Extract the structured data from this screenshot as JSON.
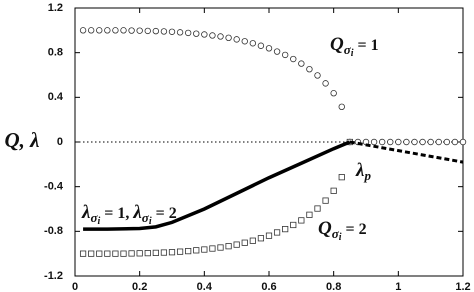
{
  "chart_data": {
    "type": "scatter",
    "y_label": "Q, λ",
    "xlim": [
      0,
      1.2
    ],
    "ylim": [
      -1.2,
      1.2
    ],
    "xticks": [
      0,
      0.2,
      0.4,
      0.6,
      0.8,
      1,
      1.2
    ],
    "yticks": [
      -1.2,
      -0.8,
      -0.4,
      0,
      0.4,
      0.8,
      1.2
    ],
    "reference_y": 0,
    "series": [
      {
        "marker": "circle",
        "color": "#333333",
        "x": [
          0.025,
          0.05,
          0.075,
          0.1,
          0.125,
          0.15,
          0.175,
          0.2,
          0.225,
          0.25,
          0.275,
          0.3,
          0.325,
          0.35,
          0.375,
          0.4,
          0.425,
          0.45,
          0.475,
          0.5,
          0.525,
          0.55,
          0.575,
          0.6,
          0.625,
          0.65,
          0.675,
          0.7,
          0.725,
          0.75,
          0.775,
          0.8,
          0.825,
          0.85,
          0.875,
          0.9,
          0.925,
          0.95,
          0.975,
          1,
          1.025,
          1.05,
          1.075,
          1.1,
          1.125,
          1.15,
          1.175,
          1.2
        ],
        "values": [
          1,
          1,
          1,
          1,
          1,
          1,
          0.998,
          0.997,
          0.995,
          0.993,
          0.99,
          0.987,
          0.982,
          0.977,
          0.97,
          0.963,
          0.954,
          0.945,
          0.933,
          0.919,
          0.902,
          0.884,
          0.862,
          0.839,
          0.81,
          0.78,
          0.743,
          0.702,
          0.652,
          0.596,
          0.525,
          0.437,
          0.315,
          0,
          0,
          0,
          0,
          0,
          0,
          0,
          0,
          0,
          0,
          0,
          0,
          0,
          0,
          0
        ]
      },
      {
        "marker": "square",
        "color": "#333333",
        "x": [
          0.025,
          0.05,
          0.075,
          0.1,
          0.125,
          0.15,
          0.175,
          0.2,
          0.225,
          0.25,
          0.275,
          0.3,
          0.325,
          0.35,
          0.375,
          0.4,
          0.425,
          0.45,
          0.475,
          0.5,
          0.525,
          0.55,
          0.575,
          0.6,
          0.625,
          0.65,
          0.675,
          0.7,
          0.725,
          0.75,
          0.775,
          0.8,
          0.825,
          0.85
        ],
        "values": [
          -1,
          -1,
          -1,
          -1,
          -1,
          -1,
          -0.998,
          -0.997,
          -0.995,
          -0.993,
          -0.99,
          -0.987,
          -0.982,
          -0.977,
          -0.97,
          -0.963,
          -0.954,
          -0.945,
          -0.933,
          -0.919,
          -0.902,
          -0.884,
          -0.862,
          -0.839,
          -0.81,
          -0.78,
          -0.743,
          -0.702,
          -0.652,
          -0.596,
          -0.525,
          -0.437,
          -0.315,
          0
        ]
      },
      {
        "marker": "line",
        "style": "solid",
        "color": "#000000",
        "x": [
          0.025,
          0.1,
          0.2,
          0.25,
          0.3,
          0.4,
          0.5,
          0.6,
          0.7,
          0.8,
          0.85
        ],
        "values": [
          -0.78,
          -0.78,
          -0.775,
          -0.76,
          -0.72,
          -0.6,
          -0.46,
          -0.32,
          -0.19,
          -0.06,
          0
        ]
      },
      {
        "marker": "line",
        "style": "dashed",
        "color": "#000000",
        "x": [
          0.85,
          1.2
        ],
        "values": [
          0,
          -0.18
        ]
      }
    ],
    "annotations": [
      [
        "Q",
        "σ",
        "i",
        " = 1"
      ],
      [
        "λ",
        "p"
      ],
      [
        "λ",
        "σ",
        "i",
        " = 1, ",
        "λ",
        "σ",
        "i",
        " = 2"
      ],
      [
        "Q",
        "σ",
        "i",
        " = 2"
      ]
    ]
  }
}
